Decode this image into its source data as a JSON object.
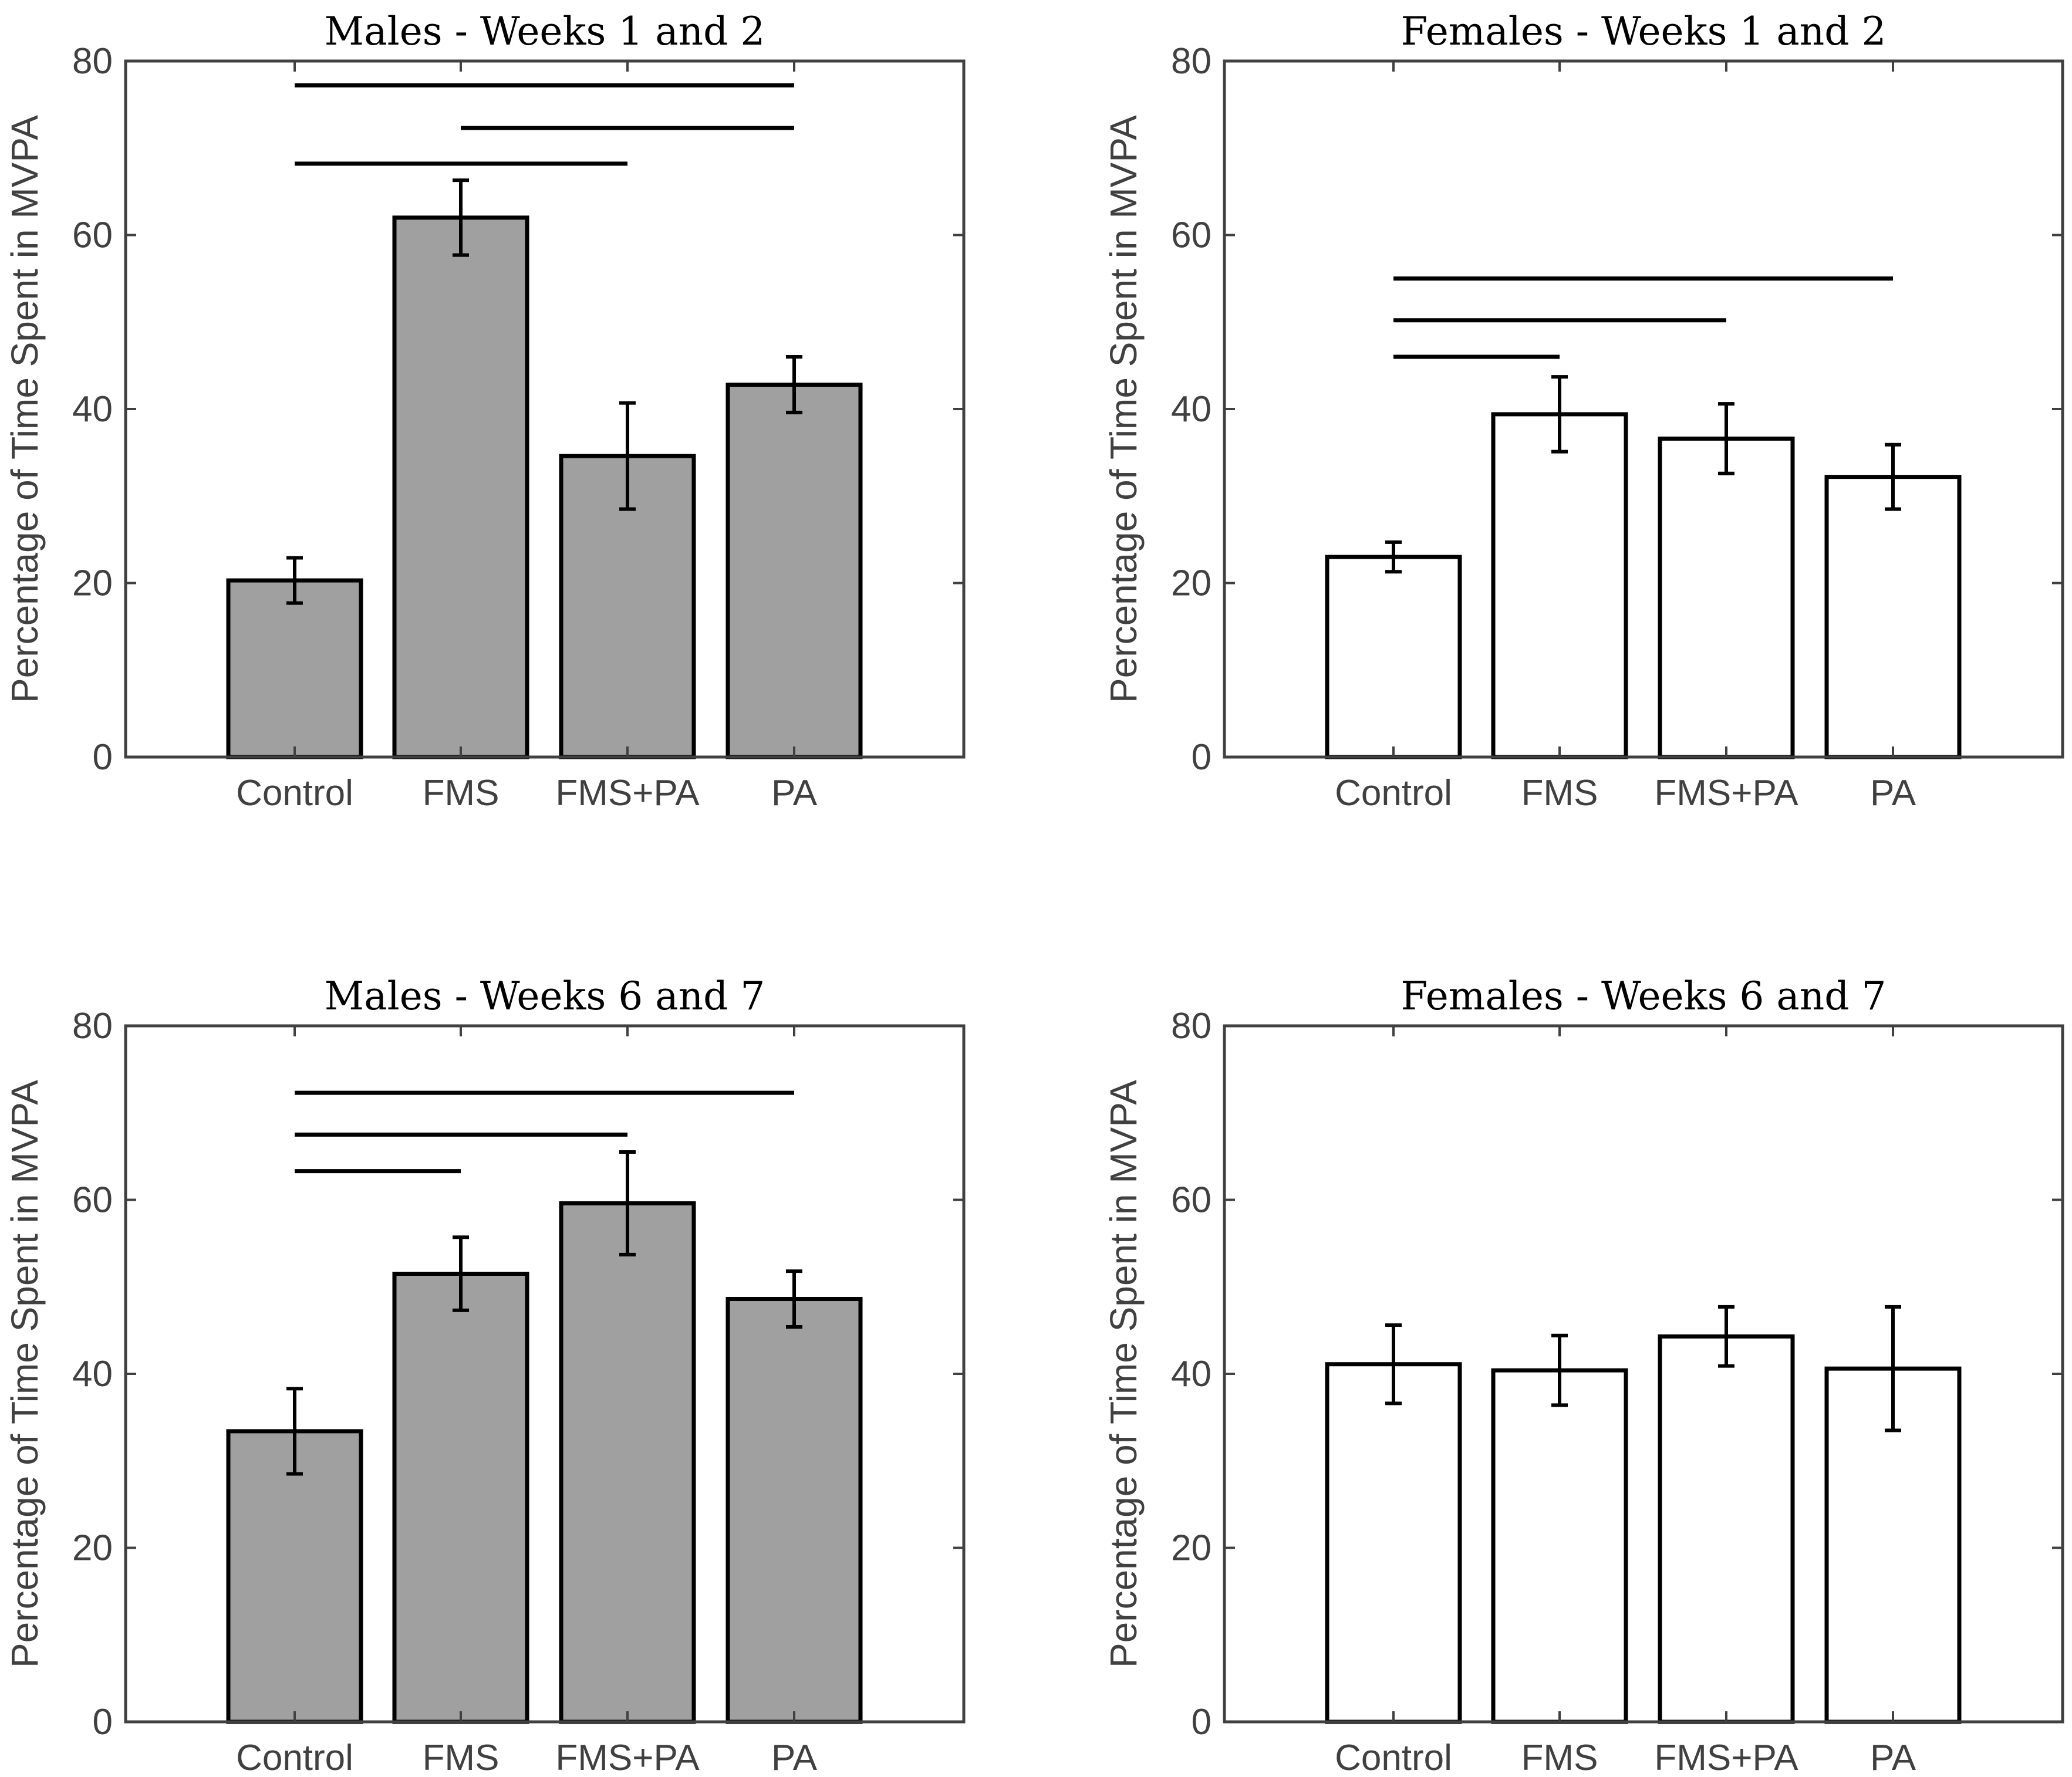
{
  "chart_data": [
    {
      "type": "bar",
      "title": "Males - Weeks 1 and 2",
      "categories": [
        "Control",
        "FMS",
        "FMS+PA",
        "PA"
      ],
      "values": [
        20.3,
        62.0,
        34.6,
        42.8
      ],
      "errors": [
        2.6,
        4.3,
        6.1,
        3.2
      ],
      "bar_color": "#a0a0a0",
      "xlabel": "",
      "ylabel": "Percentage of Time Spent in MVPA",
      "ylim": [
        0,
        80
      ],
      "yticks": [
        0,
        20,
        40,
        60,
        80
      ],
      "ytick_labels": [
        "0",
        "20",
        "40",
        "60",
        "80"
      ],
      "grid": false,
      "significance_lines": [
        {
          "from": "Control",
          "to": "PA",
          "y": 77.2
        },
        {
          "from": "FMS",
          "to": "PA",
          "y": 72.3
        },
        {
          "from": "Control",
          "to": "FMS",
          "y": 68.2
        },
        {
          "from": "FMS",
          "to": "FMS+PA",
          "y": 68.2
        }
      ]
    },
    {
      "type": "bar",
      "title": "Females - Weeks 1 and 2",
      "categories": [
        "Control",
        "FMS",
        "FMS+PA",
        "PA"
      ],
      "values": [
        23.0,
        39.4,
        36.6,
        32.2
      ],
      "errors": [
        1.7,
        4.3,
        4.0,
        3.7
      ],
      "bar_color": "#ffffff",
      "xlabel": "",
      "ylabel": "Percentage of Time Spent in MVPA",
      "ylim": [
        0,
        80
      ],
      "yticks": [
        0,
        20,
        40,
        60,
        80
      ],
      "ytick_labels": [
        "0",
        "20",
        "40",
        "60",
        "80"
      ],
      "grid": false,
      "significance_lines": [
        {
          "from": "Control",
          "to": "PA",
          "y": 55.0
        },
        {
          "from": "Control",
          "to": "FMS+PA",
          "y": 50.2
        },
        {
          "from": "Control",
          "to": "FMS",
          "y": 46.0
        }
      ]
    },
    {
      "type": "bar",
      "title": "Males - Weeks 6 and 7",
      "categories": [
        "Control",
        "FMS",
        "FMS+PA",
        "PA"
      ],
      "values": [
        33.4,
        51.5,
        59.6,
        48.6
      ],
      "errors": [
        4.9,
        4.2,
        5.9,
        3.2
      ],
      "bar_color": "#a0a0a0",
      "xlabel": "",
      "ylabel": "Percentage of Time Spent in MVPA",
      "ylim": [
        0,
        80
      ],
      "yticks": [
        0,
        20,
        40,
        60,
        80
      ],
      "ytick_labels": [
        "0",
        "20",
        "40",
        "60",
        "80"
      ],
      "grid": false,
      "significance_lines": [
        {
          "from": "Control",
          "to": "PA",
          "y": 72.3
        },
        {
          "from": "Control",
          "to": "FMS+PA",
          "y": 67.5
        },
        {
          "from": "Control",
          "to": "FMS",
          "y": 63.3
        }
      ]
    },
    {
      "type": "bar",
      "title": "Females - Weeks 6 and 7",
      "categories": [
        "Control",
        "FMS",
        "FMS+PA",
        "PA"
      ],
      "values": [
        41.1,
        40.4,
        44.3,
        40.6
      ],
      "errors": [
        4.5,
        4.0,
        3.4,
        7.1
      ],
      "bar_color": "#ffffff",
      "xlabel": "",
      "ylabel": "Percentage of Time Spent in MVPA",
      "ylim": [
        0,
        80
      ],
      "yticks": [
        0,
        20,
        40,
        60,
        80
      ],
      "ytick_labels": [
        "0",
        "20",
        "40",
        "60",
        "80"
      ],
      "grid": false,
      "significance_lines": []
    }
  ]
}
